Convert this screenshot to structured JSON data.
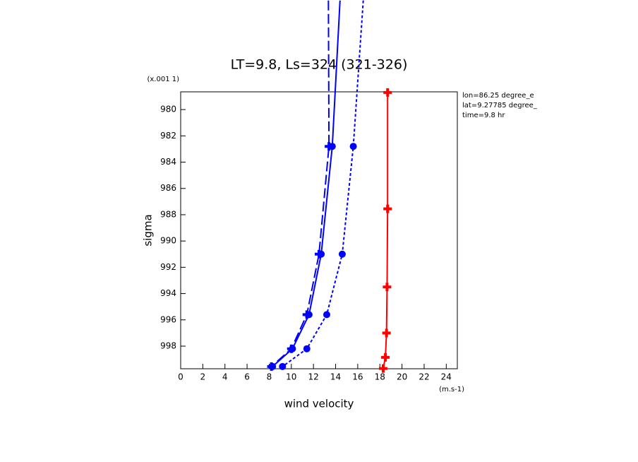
{
  "chart_data": {
    "type": "line",
    "title": "LT=9.8, Ls=324 (321-326)",
    "x_label": "wind velocity",
    "y_label": "sigma",
    "x_units": "(m.s-1)",
    "y_units": "(x.001 1)",
    "annotations": [
      "lon=86.25 degree_e",
      "lat=9.27785 degree_",
      "time=9.8 hr"
    ],
    "xlim": [
      0,
      25
    ],
    "xticks": [
      0,
      2,
      4,
      6,
      8,
      10,
      12,
      14,
      16,
      18,
      20,
      22,
      24
    ],
    "ylim": [
      978.65,
      999.72
    ],
    "y_inverted": true,
    "yticks": [
      980,
      982,
      984,
      986,
      988,
      990,
      992,
      994,
      996,
      998
    ],
    "series": [
      {
        "color": "#ff0000",
        "dash": "solid",
        "marker": "plus",
        "y": [
          978.7,
          987.55,
          993.5,
          997.0,
          998.85,
          999.7
        ],
        "values": [
          18.7,
          18.7,
          18.65,
          18.6,
          18.5,
          18.3
        ]
      },
      {
        "color": "#0000ff",
        "dash": "solid",
        "marker": "circle",
        "y": [
          971.7,
          982.8,
          991.0,
          995.6,
          998.2,
          999.55
        ],
        "values": [
          14.4,
          13.7,
          12.7,
          11.6,
          10.1,
          8.3
        ]
      },
      {
        "color": "#0000ff",
        "dash": "long",
        "marker": "plus",
        "y": [
          971.7,
          982.8,
          991.0,
          995.6,
          998.2,
          999.55
        ],
        "values": [
          13.35,
          13.4,
          12.5,
          11.4,
          10.0,
          8.2
        ]
      },
      {
        "color": "#0000ff",
        "dash": "short",
        "marker": "circle",
        "y": [
          971.7,
          982.8,
          991.0,
          995.6,
          998.2,
          999.55
        ],
        "values": [
          16.5,
          15.6,
          14.6,
          13.2,
          11.4,
          9.2
        ]
      }
    ]
  }
}
